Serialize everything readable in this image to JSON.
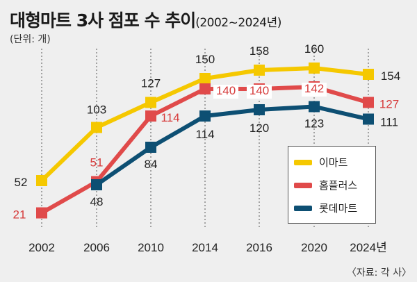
{
  "header": {
    "title": "대형마트 3사 점포 수 추이",
    "period": "(2002~2024년)",
    "unit": "(단위: 개)",
    "source": "〈자료: 각 사〉"
  },
  "chart_data": {
    "type": "line",
    "title": "대형마트 3사 점포 수 추이",
    "categories": [
      "2002",
      "2006",
      "2010",
      "2014",
      "2016",
      "2020",
      "2024년"
    ],
    "ylabel": "",
    "xlabel": "",
    "grid": "vertical-dashed",
    "legend_position": "bottom-right",
    "series": [
      {
        "name": "이마트",
        "color": "#f5c800",
        "values": [
          52,
          103,
          127,
          150,
          158,
          160,
          154
        ]
      },
      {
        "name": "홈플러스",
        "color": "#e04a4a",
        "values": [
          21,
          51,
          114,
          140,
          140,
          142,
          127
        ]
      },
      {
        "name": "롯데마트",
        "color": "#0d4f73",
        "values": [
          null,
          48,
          84,
          114,
          120,
          123,
          111
        ]
      }
    ]
  }
}
